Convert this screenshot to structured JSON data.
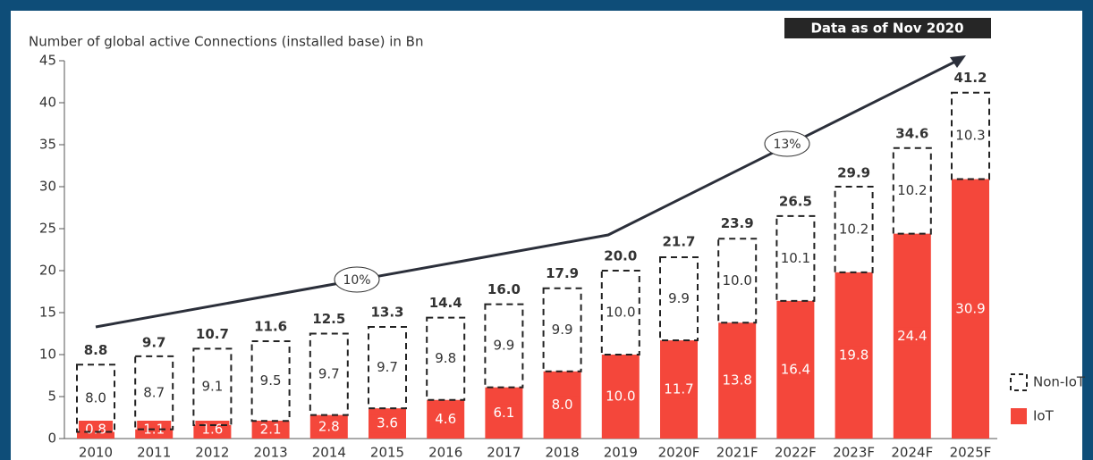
{
  "chart_data": {
    "type": "stacked_bar",
    "title": "Number of global active Connections (installed base) in Bn",
    "note": "Data as of Nov 2020",
    "categories": [
      "2010",
      "2011",
      "2012",
      "2013",
      "2014",
      "2015",
      "2016",
      "2017",
      "2018",
      "2019",
      "2020F",
      "2021F",
      "2022F",
      "2023F",
      "2024F",
      "2025F"
    ],
    "series": [
      {
        "name": "IoT",
        "color": "#f4473b",
        "values": [
          0.8,
          1.1,
          1.6,
          2.1,
          2.8,
          3.6,
          4.6,
          6.1,
          8.0,
          10.0,
          11.7,
          13.8,
          16.4,
          19.8,
          24.4,
          30.9
        ],
        "value_labels": [
          "0.8",
          "1.1",
          "1.6",
          "2.1",
          "2.8",
          "3.6",
          "4.6",
          "6.1",
          "8.0",
          "10.0",
          "11.7",
          "13.8",
          "16.4",
          "19.8",
          "24.4",
          "30.9"
        ]
      },
      {
        "name": "Non-IoT",
        "color": "#222222",
        "values": [
          8.0,
          8.7,
          9.1,
          9.5,
          9.7,
          9.7,
          9.8,
          9.9,
          9.9,
          10.0,
          9.9,
          10.0,
          10.1,
          10.2,
          10.2,
          10.3
        ],
        "value_labels": [
          "8.0",
          "8.7",
          "9.1",
          "9.5",
          "9.7",
          "9.7",
          "9.8",
          "9.9",
          "9.9",
          "10.0",
          "9.9",
          "10.0",
          "10.1",
          "10.2",
          "10.2",
          "10.3"
        ]
      }
    ],
    "totals": [
      8.8,
      9.7,
      10.7,
      11.6,
      12.5,
      13.3,
      14.4,
      16.0,
      17.9,
      20.0,
      21.7,
      23.9,
      26.5,
      29.9,
      34.6,
      41.2
    ],
    "total_labels": [
      "8.8",
      "9.7",
      "10.7",
      "11.6",
      "12.5",
      "13.3",
      "14.4",
      "16.0",
      "17.9",
      "20.0",
      "21.7",
      "23.9",
      "26.5",
      "29.9",
      "34.6",
      "41.2"
    ],
    "annotations": [
      "10%",
      "13%"
    ],
    "ylim": [
      0,
      45
    ],
    "yticks": [
      0,
      5,
      10,
      15,
      20,
      25,
      30,
      35,
      40,
      45
    ],
    "legend": "right"
  }
}
